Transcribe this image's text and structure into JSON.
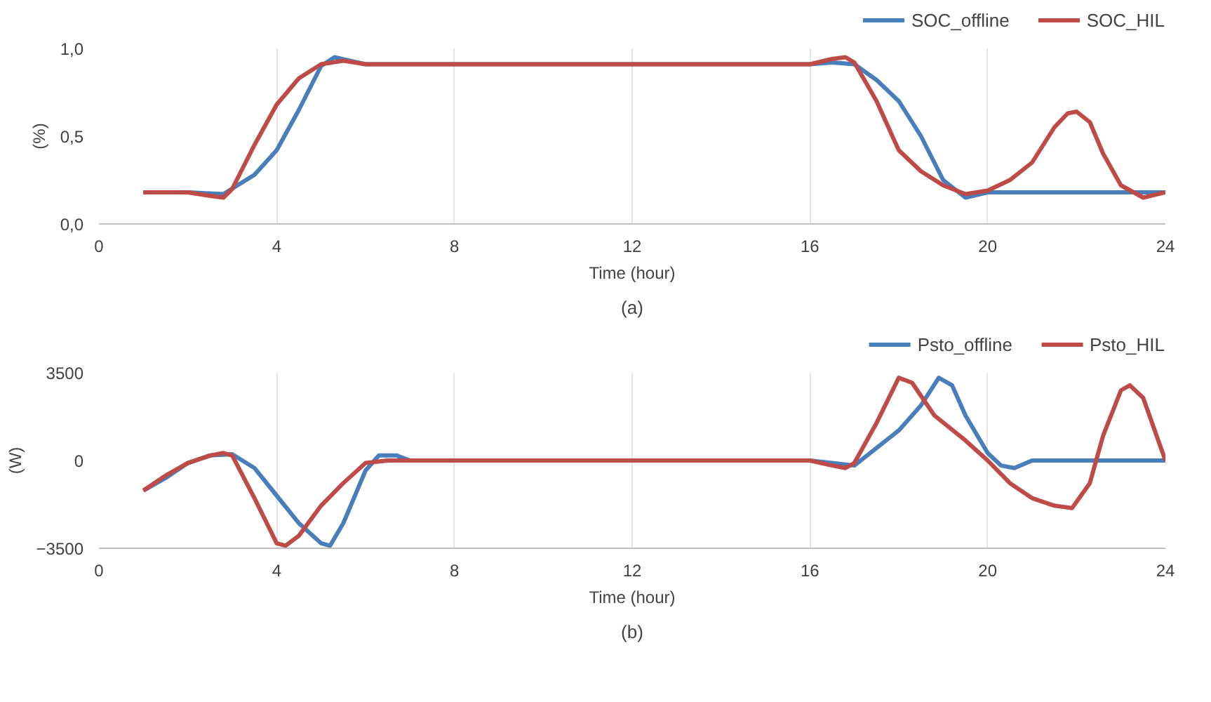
{
  "chart_data": [
    {
      "type": "line",
      "xlabel": "Time (hour)",
      "ylabel": "(%)",
      "annotations": [
        "(a)"
      ],
      "xlim": [
        0,
        24
      ],
      "ylim": [
        0,
        1
      ],
      "xticks": [
        0,
        4,
        8,
        12,
        16,
        20,
        24
      ],
      "yticks": [
        {
          "value": 0,
          "label": "0,0"
        },
        {
          "value": 0.5,
          "label": "0,5"
        },
        {
          "value": 1,
          "label": "1,0"
        }
      ],
      "grid": "x",
      "legend": "top right",
      "line_style": "solid",
      "marker": "none",
      "series": [
        {
          "name": "SOC_offline",
          "color": "#4a7ebb",
          "x": [
            1,
            2,
            2.8,
            3.5,
            4,
            4.5,
            5,
            5.3,
            6,
            16,
            16.5,
            17,
            17.5,
            18,
            18.5,
            19,
            19.5,
            20,
            24
          ],
          "values": [
            0.18,
            0.18,
            0.17,
            0.28,
            0.42,
            0.65,
            0.9,
            0.95,
            0.91,
            0.91,
            0.92,
            0.91,
            0.82,
            0.7,
            0.5,
            0.25,
            0.15,
            0.18,
            0.18
          ]
        },
        {
          "name": "SOC_HIL",
          "color": "#be4b48",
          "x": [
            1,
            2,
            2.5,
            2.8,
            3,
            3.5,
            4,
            4.5,
            5,
            5.5,
            6,
            16,
            16.5,
            16.8,
            17,
            17.5,
            18,
            18.5,
            19,
            19.5,
            20,
            20.5,
            21,
            21.5,
            21.8,
            22,
            22.3,
            22.6,
            23,
            23.5,
            24
          ],
          "values": [
            0.18,
            0.18,
            0.16,
            0.15,
            0.2,
            0.45,
            0.68,
            0.83,
            0.91,
            0.93,
            0.91,
            0.91,
            0.94,
            0.95,
            0.92,
            0.7,
            0.42,
            0.3,
            0.22,
            0.17,
            0.19,
            0.25,
            0.35,
            0.55,
            0.63,
            0.64,
            0.58,
            0.4,
            0.22,
            0.15,
            0.18
          ]
        }
      ]
    },
    {
      "type": "line",
      "xlabel": "Time (hour)",
      "ylabel": "(W)",
      "annotations": [
        "(b)"
      ],
      "xlim": [
        0,
        24
      ],
      "ylim": [
        -3500,
        3500
      ],
      "xticks": [
        0,
        4,
        8,
        12,
        16,
        20,
        24
      ],
      "yticks": [
        -3500,
        0,
        3500
      ],
      "grid": "x",
      "legend": "top right",
      "line_style": "solid",
      "marker": "none",
      "series": [
        {
          "name": "Psto_offline",
          "color": "#4a7ebb",
          "x": [
            1,
            1.5,
            2,
            2.5,
            3,
            3.5,
            4,
            4.5,
            5,
            5.2,
            5.5,
            6,
            6.3,
            6.7,
            7,
            16,
            16.5,
            17,
            17.5,
            18,
            18.5,
            18.9,
            19.2,
            19.5,
            20,
            20.3,
            20.6,
            21,
            24
          ],
          "values": [
            -1200,
            -700,
            -100,
            200,
            250,
            -300,
            -1400,
            -2500,
            -3300,
            -3400,
            -2500,
            -400,
            200,
            200,
            0,
            0,
            -100,
            -200,
            500,
            1200,
            2200,
            3300,
            3000,
            1800,
            300,
            -200,
            -300,
            0,
            0
          ]
        },
        {
          "name": "Psto_HIL",
          "color": "#be4b48",
          "x": [
            1,
            1.5,
            2,
            2.5,
            2.8,
            3,
            3.5,
            4,
            4.2,
            4.5,
            5,
            5.5,
            6,
            6.5,
            16,
            16.5,
            16.8,
            17,
            17.5,
            18,
            18.3,
            18.8,
            19.5,
            20,
            20.5,
            21,
            21.5,
            21.9,
            22.3,
            22.6,
            23,
            23.2,
            23.5,
            24
          ],
          "values": [
            -1200,
            -600,
            -100,
            200,
            300,
            200,
            -1500,
            -3300,
            -3400,
            -3000,
            -1800,
            -900,
            -100,
            0,
            0,
            -200,
            -300,
            -100,
            1500,
            3300,
            3100,
            1800,
            800,
            0,
            -900,
            -1500,
            -1800,
            -1900,
            -900,
            1000,
            2800,
            3000,
            2500,
            0
          ]
        }
      ]
    }
  ]
}
